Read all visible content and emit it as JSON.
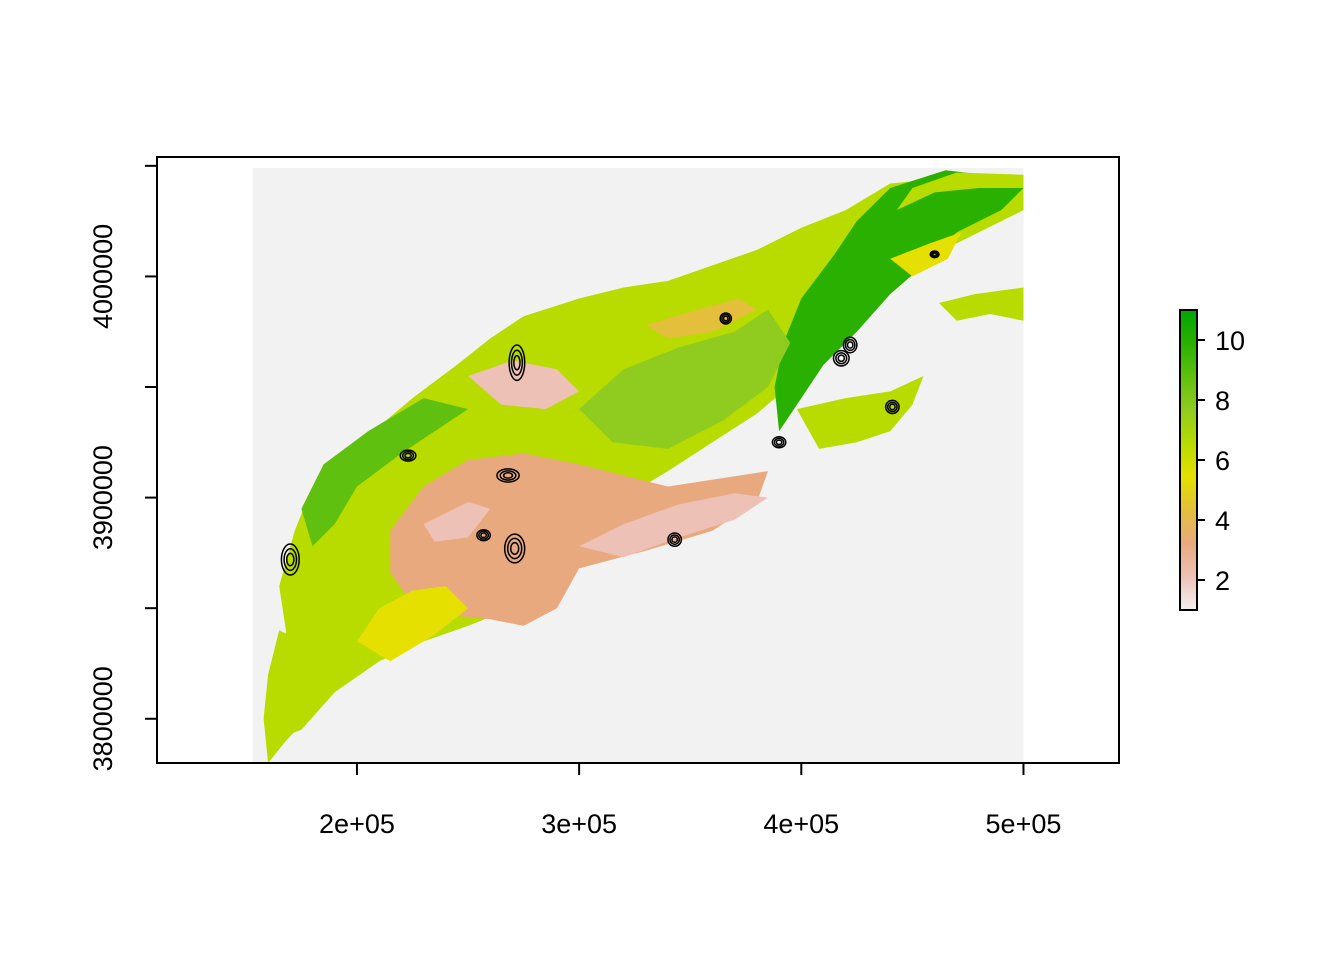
{
  "chart_data": {
    "type": "heatmap",
    "title": "",
    "xlabel": "",
    "ylabel": "",
    "xlim": [
      110000,
      543000
    ],
    "ylim": [
      3780000,
      4054000
    ],
    "raster_extent": {
      "x": [
        153000,
        500000
      ],
      "y": [
        3780000,
        4049000
      ]
    },
    "x_ticks": [
      200000,
      300000,
      400000,
      500000
    ],
    "x_tick_labels": [
      "2e+05",
      "3e+05",
      "4e+05",
      "5e+05"
    ],
    "y_ticks": [
      3800000,
      3850000,
      3900000,
      3950000,
      4000000,
      4050000
    ],
    "y_tick_labels": [
      "3800000",
      "",
      "3900000",
      "",
      "4000000",
      ""
    ],
    "legend": {
      "placement": "right",
      "range": [
        1,
        11
      ],
      "ticks": [
        2,
        4,
        6,
        8,
        10
      ],
      "tick_labels": [
        "2",
        "4",
        "6",
        "8",
        "10"
      ],
      "colors": [
        "#f2f2f2",
        "#eec1b6",
        "#e8a97e",
        "#e4bf3b",
        "#e5e000",
        "#b8db00",
        "#8fcc1f",
        "#5fc010",
        "#2ab000",
        "#00a600"
      ]
    },
    "background_fill_color": "#f2f2f2",
    "contour_color": "#000000",
    "regions": [
      {
        "value": 7,
        "points": [
          [
            162000,
            3790000
          ],
          [
            170000,
            3810000
          ],
          [
            168000,
            3840000
          ],
          [
            165000,
            3860000
          ],
          [
            172000,
            3885000
          ],
          [
            180000,
            3905000
          ],
          [
            190000,
            3915000
          ],
          [
            205000,
            3928000
          ],
          [
            225000,
            3945000
          ],
          [
            245000,
            3960000
          ],
          [
            260000,
            3972000
          ],
          [
            275000,
            3982000
          ],
          [
            300000,
            3990000
          ],
          [
            320000,
            3995000
          ],
          [
            340000,
            3998000
          ],
          [
            360000,
            4005000
          ],
          [
            380000,
            4012000
          ],
          [
            400000,
            4022000
          ],
          [
            420000,
            4030000
          ],
          [
            440000,
            4042000
          ],
          [
            470000,
            4045000
          ],
          [
            500000,
            4045000
          ],
          [
            500000,
            4030000
          ],
          [
            480000,
            4020000
          ],
          [
            460000,
            4010000
          ],
          [
            440000,
            3995000
          ],
          [
            420000,
            3975000
          ],
          [
            400000,
            3955000
          ],
          [
            380000,
            3938000
          ],
          [
            360000,
            3925000
          ],
          [
            340000,
            3912000
          ],
          [
            320000,
            3900000
          ],
          [
            300000,
            3885000
          ],
          [
            285000,
            3860000
          ],
          [
            270000,
            3850000
          ],
          [
            250000,
            3842000
          ],
          [
            230000,
            3835000
          ],
          [
            210000,
            3826000
          ],
          [
            190000,
            3812000
          ],
          [
            175000,
            3795000
          ]
        ]
      },
      {
        "value": 3,
        "points": [
          [
            340000,
            3905000
          ],
          [
            385000,
            3912000
          ],
          [
            380000,
            3898000
          ],
          [
            360000,
            3885000
          ],
          [
            330000,
            3876000
          ],
          [
            300000,
            3868000
          ],
          [
            290000,
            3850000
          ],
          [
            275000,
            3842000
          ],
          [
            260000,
            3845000
          ],
          [
            240000,
            3847000
          ],
          [
            225000,
            3852000
          ],
          [
            215000,
            3866000
          ],
          [
            215000,
            3885000
          ],
          [
            230000,
            3905000
          ],
          [
            250000,
            3917000
          ],
          [
            275000,
            3920000
          ],
          [
            300000,
            3915000
          ],
          [
            320000,
            3910000
          ]
        ]
      },
      {
        "value": 9,
        "points": [
          [
            180000,
            3878000
          ],
          [
            190000,
            3888000
          ],
          [
            200000,
            3905000
          ],
          [
            220000,
            3920000
          ],
          [
            235000,
            3930000
          ],
          [
            250000,
            3940000
          ],
          [
            230000,
            3945000
          ],
          [
            205000,
            3930000
          ],
          [
            185000,
            3915000
          ],
          [
            175000,
            3895000
          ]
        ]
      },
      {
        "value": 5,
        "points": [
          [
            200000,
            3835000
          ],
          [
            215000,
            3826000
          ],
          [
            235000,
            3838000
          ],
          [
            250000,
            3850000
          ],
          [
            240000,
            3860000
          ],
          [
            225000,
            3858000
          ],
          [
            210000,
            3850000
          ]
        ]
      },
      {
        "value": 10,
        "points": [
          [
            390000,
            3930000
          ],
          [
            400000,
            3945000
          ],
          [
            410000,
            3960000
          ],
          [
            425000,
            3975000
          ],
          [
            440000,
            3992000
          ],
          [
            455000,
            4005000
          ],
          [
            470000,
            4020000
          ],
          [
            490000,
            4030000
          ],
          [
            500000,
            4040000
          ],
          [
            490000,
            4045000
          ],
          [
            465000,
            4048000
          ],
          [
            440000,
            4040000
          ],
          [
            425000,
            4025000
          ],
          [
            415000,
            4010000
          ],
          [
            400000,
            3990000
          ],
          [
            392000,
            3970000
          ],
          [
            388000,
            3950000
          ]
        ]
      },
      {
        "value": 8,
        "points": [
          [
            300000,
            3940000
          ],
          [
            320000,
            3958000
          ],
          [
            345000,
            3968000
          ],
          [
            370000,
            3975000
          ],
          [
            385000,
            3985000
          ],
          [
            395000,
            3970000
          ],
          [
            385000,
            3950000
          ],
          [
            365000,
            3935000
          ],
          [
            340000,
            3922000
          ],
          [
            315000,
            3925000
          ]
        ]
      },
      {
        "value": 2,
        "points": [
          [
            250000,
            3955000
          ],
          [
            270000,
            3962000
          ],
          [
            290000,
            3958000
          ],
          [
            300000,
            3948000
          ],
          [
            285000,
            3940000
          ],
          [
            265000,
            3942000
          ]
        ]
      },
      {
        "value": 2,
        "points": [
          [
            300000,
            3878000
          ],
          [
            320000,
            3888000
          ],
          [
            345000,
            3897000
          ],
          [
            370000,
            3902000
          ],
          [
            385000,
            3900000
          ],
          [
            370000,
            3890000
          ],
          [
            345000,
            3882000
          ],
          [
            320000,
            3873000
          ]
        ]
      },
      {
        "value": 2,
        "points": [
          [
            230000,
            3888000
          ],
          [
            250000,
            3898000
          ],
          [
            260000,
            3895000
          ],
          [
            250000,
            3882000
          ],
          [
            235000,
            3880000
          ]
        ]
      },
      {
        "value": 6,
        "points": [
          [
            398000,
            3940000
          ],
          [
            420000,
            3945000
          ],
          [
            440000,
            3948000
          ],
          [
            455000,
            3955000
          ],
          [
            450000,
            3942000
          ],
          [
            440000,
            3930000
          ],
          [
            425000,
            3925000
          ],
          [
            408000,
            3922000
          ]
        ]
      },
      {
        "value": 6,
        "points": [
          [
            462000,
            3988000
          ],
          [
            478000,
            3992000
          ],
          [
            500000,
            3995000
          ],
          [
            500000,
            3980000
          ],
          [
            485000,
            3983000
          ],
          [
            470000,
            3980000
          ]
        ]
      },
      {
        "value": 6,
        "points": [
          [
            160000,
            3780000
          ],
          [
            168000,
            3790000
          ],
          [
            185000,
            3808000
          ],
          [
            188000,
            3825000
          ],
          [
            175000,
            3835000
          ],
          [
            165000,
            3840000
          ],
          [
            160000,
            3820000
          ],
          [
            158000,
            3800000
          ]
        ]
      },
      {
        "value": 6,
        "points": [
          [
            443000,
            4030000
          ],
          [
            460000,
            4038000
          ],
          [
            480000,
            4040000
          ],
          [
            500000,
            4040000
          ],
          [
            500000,
            4046000
          ],
          [
            470000,
            4047000
          ],
          [
            450000,
            4040000
          ]
        ]
      },
      {
        "value": 5,
        "points": [
          [
            440000,
            4008000
          ],
          [
            458000,
            4015000
          ],
          [
            472000,
            4020000
          ],
          [
            466000,
            4008000
          ],
          [
            450000,
            4000000
          ]
        ]
      },
      {
        "value": 4,
        "points": [
          [
            330000,
            3978000
          ],
          [
            350000,
            3984000
          ],
          [
            372000,
            3990000
          ],
          [
            380000,
            3985000
          ],
          [
            360000,
            3975000
          ],
          [
            340000,
            3972000
          ]
        ]
      }
    ],
    "contours": [
      {
        "center": [
          170000,
          3872000
        ],
        "size": [
          8000,
          14000
        ]
      },
      {
        "center": [
          272000,
          3961000
        ],
        "size": [
          7000,
          16000
        ]
      },
      {
        "center": [
          223000,
          3919000
        ],
        "size": [
          7000,
          5000
        ]
      },
      {
        "center": [
          268000,
          3910000
        ],
        "size": [
          10000,
          6000
        ]
      },
      {
        "center": [
          271000,
          3877000
        ],
        "size": [
          9000,
          13000
        ]
      },
      {
        "center": [
          257000,
          3883000
        ],
        "size": [
          6000,
          5000
        ]
      },
      {
        "center": [
          343000,
          3881000
        ],
        "size": [
          6000,
          6000
        ]
      },
      {
        "center": [
          390000,
          3925000
        ],
        "size": [
          6000,
          5000
        ]
      },
      {
        "center": [
          418000,
          3963000
        ],
        "size": [
          7000,
          7000
        ]
      },
      {
        "center": [
          422000,
          3969000
        ],
        "size": [
          6000,
          7000
        ]
      },
      {
        "center": [
          441000,
          3941000
        ],
        "size": [
          6000,
          6000
        ]
      },
      {
        "center": [
          366000,
          3981000
        ],
        "size": [
          5000,
          5000
        ]
      },
      {
        "center": [
          460000,
          4010000
        ],
        "size": [
          4000,
          3000
        ]
      }
    ]
  }
}
